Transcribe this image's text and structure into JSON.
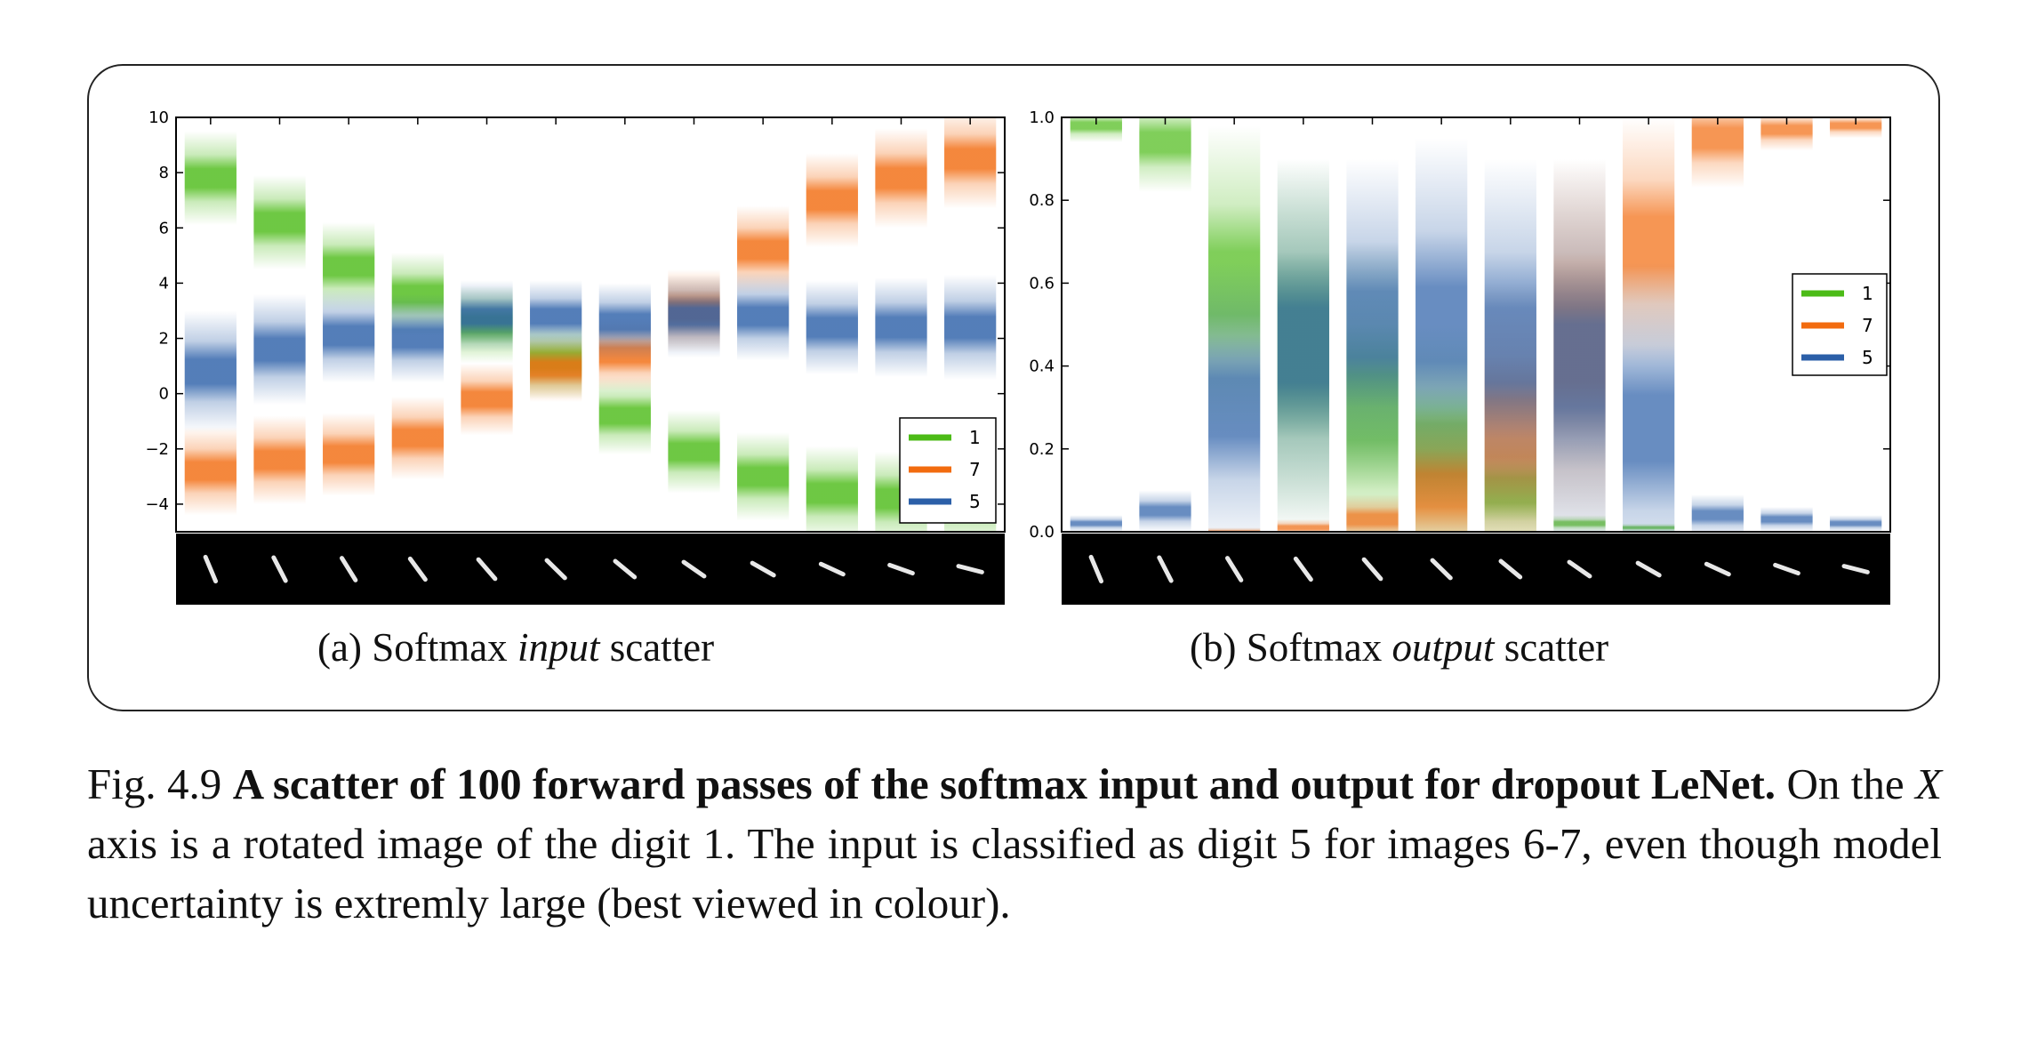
{
  "figure": {
    "caption": {
      "number": "Fig. 4.9",
      "bold": "A scatter of 100 forward passes of the softmax input and output for dropout LeNet.",
      "text_pre": "On the",
      "x_symbol": "X",
      "text_post": "axis is a rotated image of the digit 1. The input is classified as digit 5 for images 6-7, even though model uncertainty is extremly large (best viewed in colour)."
    },
    "panel_a": {
      "label": "(a) Softmax",
      "italic": "input",
      "suffix": "scatter"
    },
    "panel_b": {
      "label": "(b) Softmax",
      "italic": "output",
      "suffix": "scatter"
    }
  },
  "chart_data": [
    {
      "type": "scatter",
      "panel": "a",
      "ylim": [
        -5,
        10
      ],
      "yticks": [
        -4,
        -2,
        0,
        2,
        4,
        6,
        8,
        10
      ],
      "ytick_labels": [
        "−4",
        "−2",
        "0",
        "2",
        "4",
        "6",
        "8",
        "10"
      ],
      "legend": [
        "1",
        "7",
        "5"
      ],
      "legend_position": "lower-right",
      "colors": {
        "1": "#4cbb17",
        "7": "#f26b0f",
        "5": "#2b5fa8"
      },
      "x_images": 12,
      "series": [
        {
          "name": "1",
          "centers": [
            7.8,
            6.2,
            4.6,
            3.6,
            2.5,
            1.2,
            -0.8,
            -2.1,
            -3.0,
            -3.6,
            -3.8,
            -3.8
          ],
          "spreads": [
            1.7,
            1.7,
            1.6,
            1.5,
            1.4,
            1.4,
            1.4,
            1.5,
            1.6,
            1.7,
            1.7,
            1.7
          ]
        },
        {
          "name": "7",
          "centers": [
            -2.8,
            -2.4,
            -2.2,
            -1.6,
            -0.2,
            0.9,
            1.4,
            3.0,
            5.2,
            7.0,
            7.8,
            8.5
          ],
          "spreads": [
            1.6,
            1.6,
            1.5,
            1.5,
            1.3,
            1.2,
            1.3,
            1.5,
            1.6,
            1.7,
            1.8,
            1.8
          ]
        },
        {
          "name": "5",
          "centers": [
            0.8,
            1.6,
            2.1,
            2.0,
            2.8,
            2.8,
            2.6,
            2.8,
            2.8,
            2.4,
            2.4,
            2.4
          ],
          "spreads": [
            2.2,
            2.0,
            1.7,
            1.6,
            1.3,
            1.3,
            1.4,
            1.5,
            1.6,
            1.7,
            1.8,
            1.9
          ]
        }
      ]
    },
    {
      "type": "scatter",
      "panel": "b",
      "ylim": [
        0.0,
        1.0
      ],
      "yticks": [
        0.0,
        0.2,
        0.4,
        0.6,
        0.8,
        1.0
      ],
      "ytick_labels": [
        "0.0",
        "0.2",
        "0.4",
        "0.6",
        "0.8",
        "1.0"
      ],
      "legend": [
        "1",
        "7",
        "5"
      ],
      "legend_position": "center-right",
      "colors": {
        "1": "#4cbb17",
        "7": "#f26b0f",
        "5": "#2b5fa8"
      },
      "x_images": 12,
      "series": [
        {
          "name": "1",
          "centers": [
            0.98,
            0.94,
            0.6,
            0.45,
            0.3,
            0.2,
            0.1,
            0.02,
            0.01,
            0.0,
            0.0,
            0.0
          ],
          "spreads": [
            0.04,
            0.12,
            0.38,
            0.45,
            0.4,
            0.3,
            0.15,
            0.02,
            0.01,
            0.0,
            0.0,
            0.0
          ]
        },
        {
          "name": "7",
          "centers": [
            0.0,
            0.0,
            0.0,
            0.01,
            0.03,
            0.1,
            0.25,
            0.45,
            0.7,
            0.95,
            0.97,
            0.98
          ],
          "spreads": [
            0.0,
            0.0,
            0.01,
            0.02,
            0.06,
            0.2,
            0.35,
            0.45,
            0.3,
            0.12,
            0.05,
            0.03
          ]
        },
        {
          "name": "5",
          "centers": [
            0.02,
            0.05,
            0.3,
            0.45,
            0.5,
            0.5,
            0.45,
            0.4,
            0.25,
            0.04,
            0.03,
            0.02
          ],
          "spreads": [
            0.02,
            0.05,
            0.35,
            0.45,
            0.4,
            0.45,
            0.45,
            0.5,
            0.4,
            0.05,
            0.03,
            0.02
          ]
        }
      ]
    }
  ]
}
